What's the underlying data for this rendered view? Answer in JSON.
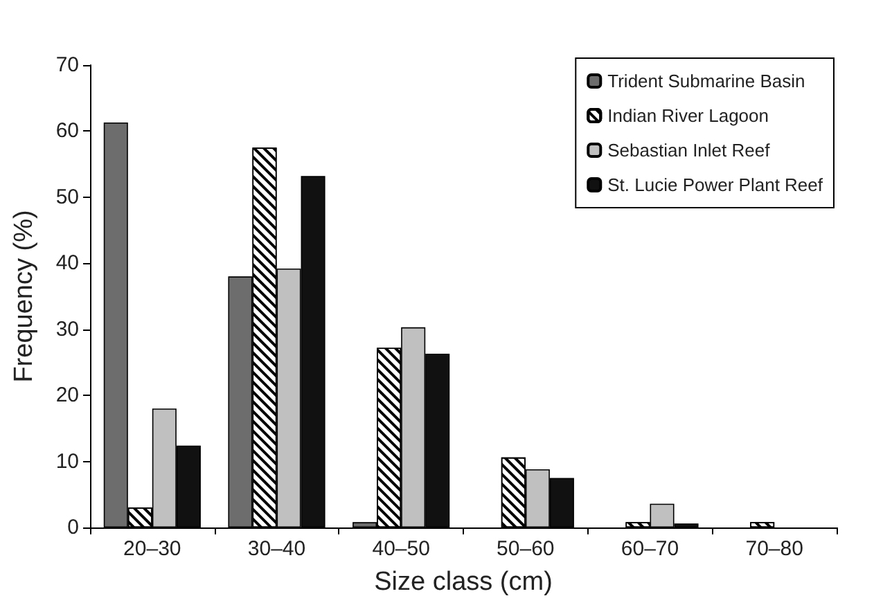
{
  "chart_data": {
    "type": "bar",
    "xlabel": "Size class (cm)",
    "ylabel": "Frequency (%)",
    "categories": [
      "20–30",
      "30–40",
      "40–50",
      "50–60",
      "60–70",
      "70–80"
    ],
    "series": [
      {
        "name": "Trident Submarine Basin",
        "color": "#6d6d6d",
        "values": [
          61.3,
          38,
          0.8,
          0,
          0,
          0
        ]
      },
      {
        "name": "Indian River Lagoon",
        "color": "#ffffff",
        "values": [
          3,
          57.5,
          27.2,
          10.6,
          0.8,
          0.8
        ]
      },
      {
        "name": "Sebastian Inlet Reef",
        "color": "#c0c0c0",
        "values": [
          18,
          39.2,
          30.3,
          8.8,
          3.6,
          0
        ]
      },
      {
        "name": "St. Lucie Power Plant Reef",
        "color": "#111111",
        "values": [
          12.4,
          53.2,
          26.3,
          7.5,
          0.6,
          0
        ]
      }
    ],
    "ylim": [
      0,
      70
    ],
    "yticks": [
      0,
      10,
      20,
      30,
      40,
      50,
      60,
      70
    ],
    "grid": false,
    "legend": "top right"
  }
}
